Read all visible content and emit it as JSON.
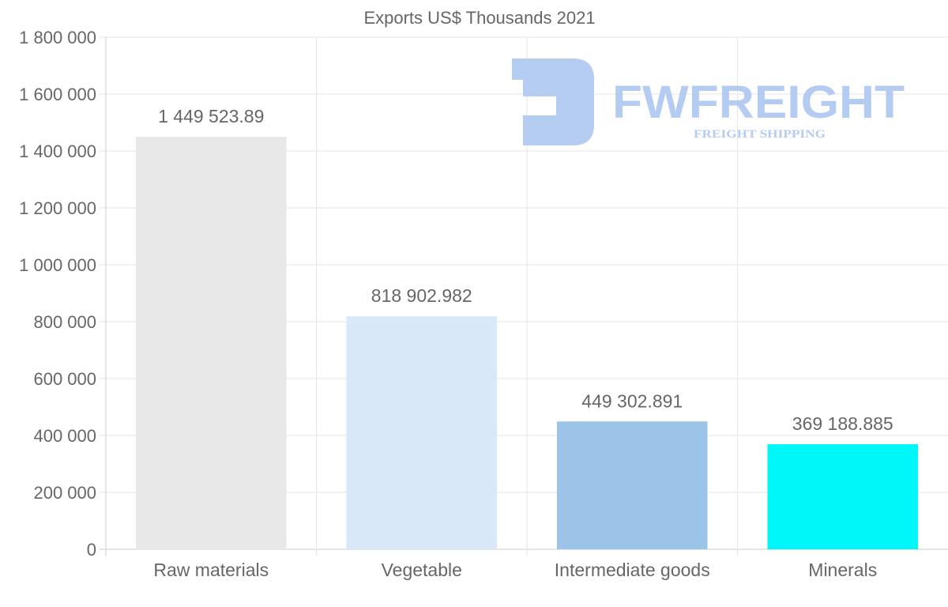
{
  "chart_data": {
    "type": "bar",
    "title": "Exports US$ Thousands 2021",
    "categories": [
      "Raw materials",
      "Vegetable",
      "Intermediate goods",
      "Minerals"
    ],
    "values": [
      1449523.89,
      818902.982,
      449302.891,
      369188.885
    ],
    "value_labels": [
      "1 449 523.89",
      "818 902.982",
      "449 302.891",
      "369 188.885"
    ],
    "colors": [
      "#e8e8e8",
      "#d8e8f9",
      "#9bc4e8",
      "#00f7f9"
    ],
    "ylim": [
      0,
      1800000
    ],
    "yticks": [
      0,
      200000,
      400000,
      600000,
      800000,
      1000000,
      1200000,
      1400000,
      1600000,
      1800000
    ],
    "ytick_labels": [
      "0",
      "200 000",
      "400 000",
      "600 000",
      "800 000",
      "1 000 000",
      "1 200 000",
      "1 400 000",
      "1 600 000",
      "1 800 000"
    ],
    "xlabel": "",
    "ylabel": "",
    "grid": true,
    "legend": "none"
  },
  "watermark": {
    "brand": "FWFREIGHT",
    "tagline": "FREIGHT SHIPPING",
    "color": "#a9c4f0"
  }
}
